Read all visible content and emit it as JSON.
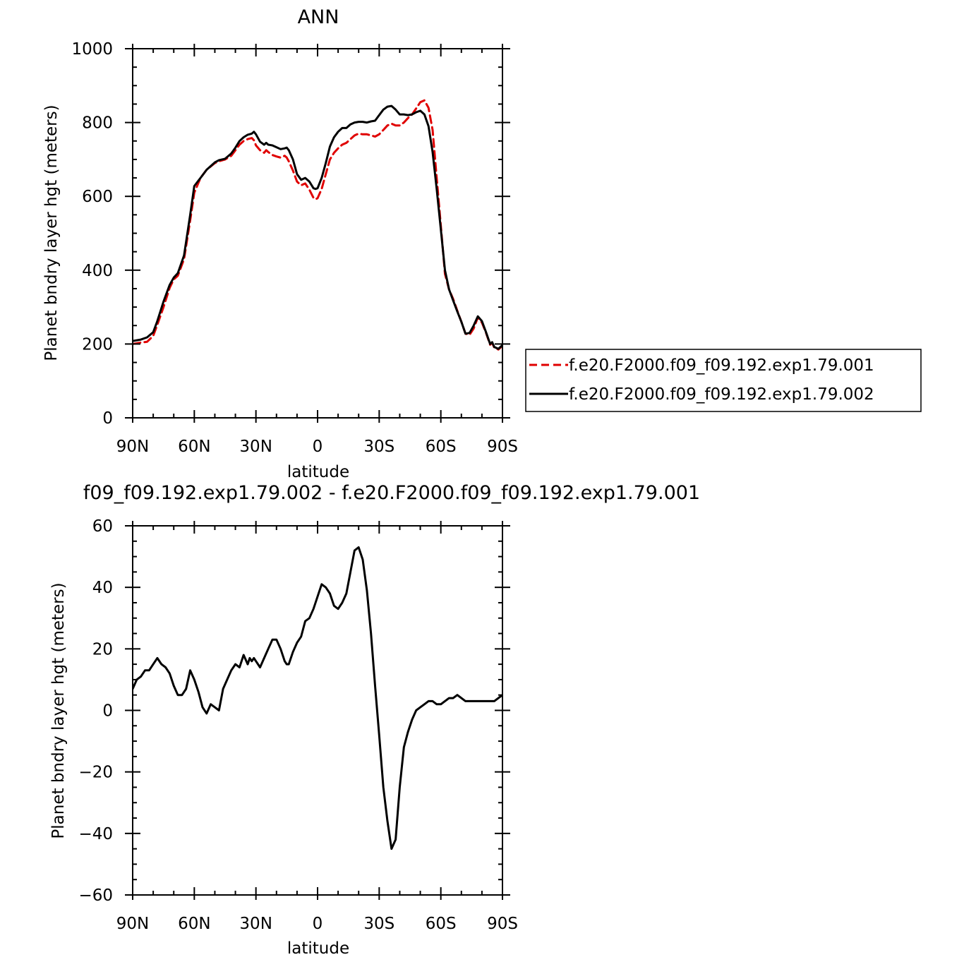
{
  "chart_data": [
    {
      "type": "line",
      "title": "ANN",
      "xlabel": "latitude",
      "ylabel": "Planet bndry layer hgt (meters)",
      "x_tick_labels": [
        "90N",
        "60N",
        "30N",
        "0",
        "30S",
        "60S",
        "90S"
      ],
      "xlim": [
        90,
        -90
      ],
      "ylim": [
        0,
        1000
      ],
      "y_ticks": [
        0,
        200,
        400,
        600,
        800,
        1000
      ],
      "legend_position": "right",
      "series": [
        {
          "name": "f.e20.F2000.f09_f09.192.exp1.79.001",
          "color": "#e00000",
          "dash": "dashed",
          "x": [
            90,
            86,
            83,
            80,
            78,
            75,
            72,
            70,
            68,
            65,
            62,
            60,
            57,
            54,
            50,
            48,
            45,
            42,
            40,
            38,
            36,
            34,
            32,
            31,
            30,
            28,
            26,
            25,
            24,
            22,
            20,
            18,
            16,
            15,
            14,
            12,
            10,
            8,
            6,
            4,
            2,
            1,
            0,
            -2,
            -4,
            -6,
            -8,
            -10,
            -12,
            -14,
            -16,
            -18,
            -20,
            -22,
            -24,
            -26,
            -28,
            -30,
            -32,
            -34,
            -36,
            -38,
            -40,
            -42,
            -44,
            -46,
            -48,
            -50,
            -52,
            -54,
            -56,
            -58,
            -60,
            -62,
            -64,
            -66,
            -68,
            -70,
            -72,
            -74,
            -76,
            -78,
            -80,
            -82,
            -84,
            -85,
            -86,
            -88,
            -90
          ],
          "y": [
            200,
            204,
            206,
            222,
            252,
            300,
            352,
            375,
            385,
            430,
            535,
            610,
            650,
            672,
            690,
            695,
            700,
            710,
            725,
            740,
            750,
            755,
            758,
            752,
            738,
            725,
            718,
            725,
            720,
            712,
            708,
            705,
            710,
            705,
            695,
            670,
            640,
            630,
            635,
            618,
            596,
            592,
            595,
            620,
            660,
            700,
            718,
            730,
            740,
            745,
            755,
            765,
            770,
            768,
            768,
            765,
            762,
            768,
            780,
            792,
            797,
            792,
            792,
            800,
            812,
            822,
            838,
            855,
            860,
            840,
            780,
            650,
            520,
            390,
            348,
            322,
            290,
            260,
            228,
            225,
            242,
            272,
            258,
            230,
            198,
            203,
            190,
            185,
            195
          ]
        },
        {
          "name": "f.e20.F2000.f09_f09.192.exp1.79.002",
          "color": "#000000",
          "dash": "solid",
          "x": [
            90,
            86,
            83,
            80,
            78,
            75,
            72,
            70,
            68,
            65,
            62,
            60,
            57,
            54,
            50,
            48,
            45,
            42,
            40,
            38,
            36,
            34,
            32,
            31,
            30,
            28,
            26,
            25,
            24,
            22,
            20,
            18,
            16,
            15,
            14,
            12,
            10,
            8,
            6,
            4,
            2,
            1,
            0,
            -2,
            -4,
            -6,
            -8,
            -10,
            -12,
            -14,
            -16,
            -18,
            -20,
            -22,
            -24,
            -26,
            -28,
            -30,
            -32,
            -34,
            -36,
            -38,
            -40,
            -42,
            -44,
            -46,
            -48,
            -50,
            -52,
            -54,
            -56,
            -58,
            -60,
            -62,
            -64,
            -66,
            -68,
            -70,
            -72,
            -74,
            -76,
            -78,
            -80,
            -82,
            -84,
            -85,
            -86,
            -88,
            -90
          ],
          "y": [
            208,
            212,
            218,
            232,
            262,
            315,
            360,
            380,
            392,
            440,
            550,
            628,
            650,
            672,
            692,
            698,
            702,
            716,
            732,
            750,
            760,
            767,
            770,
            775,
            768,
            748,
            740,
            745,
            740,
            738,
            733,
            728,
            730,
            732,
            725,
            700,
            660,
            645,
            650,
            640,
            622,
            620,
            622,
            650,
            690,
            735,
            760,
            775,
            785,
            785,
            795,
            800,
            802,
            802,
            800,
            803,
            805,
            820,
            835,
            843,
            845,
            835,
            822,
            822,
            820,
            822,
            828,
            832,
            822,
            790,
            720,
            620,
            510,
            400,
            348,
            318,
            288,
            260,
            228,
            230,
            250,
            275,
            262,
            232,
            200,
            205,
            192,
            187,
            197
          ]
        }
      ]
    },
    {
      "type": "line",
      "title": "f09_f09.192.exp1.79.002 - f.e20.F2000.f09_f09.192.exp1.79.001",
      "xlabel": "latitude",
      "ylabel": "Planet bndry layer hgt (meters)",
      "x_tick_labels": [
        "90N",
        "60N",
        "30N",
        "0",
        "30S",
        "60S",
        "90S"
      ],
      "xlim": [
        90,
        -90
      ],
      "ylim": [
        -60,
        60
      ],
      "y_ticks": [
        -60,
        -40,
        -20,
        0,
        20,
        40,
        60
      ],
      "series": [
        {
          "color": "#000000",
          "dash": "solid",
          "x": [
            90,
            88,
            86,
            84,
            82,
            80,
            78,
            76,
            74,
            72,
            70,
            68,
            66,
            64,
            62,
            60,
            58,
            56,
            54,
            52,
            50,
            48,
            46,
            44,
            42,
            40,
            38,
            36,
            34,
            33,
            32,
            31,
            30,
            29,
            28,
            26,
            24,
            22,
            20,
            18,
            16,
            15,
            14,
            12,
            10,
            8,
            6,
            4,
            2,
            0,
            -2,
            -4,
            -6,
            -8,
            -10,
            -12,
            -14,
            -16,
            -18,
            -20,
            -22,
            -24,
            -26,
            -28,
            -30,
            -32,
            -34,
            -36,
            -38,
            -40,
            -42,
            -44,
            -46,
            -48,
            -50,
            -52,
            -54,
            -56,
            -58,
            -60,
            -62,
            -64,
            -66,
            -68,
            -70,
            -72,
            -74,
            -76,
            -78,
            -80,
            -82,
            -84,
            -86,
            -88,
            -90
          ],
          "y": [
            7,
            10,
            11,
            13,
            13,
            15,
            17,
            15,
            14,
            12,
            8,
            5,
            5,
            7,
            13,
            10,
            6,
            1,
            -1,
            2,
            1,
            0,
            7,
            10,
            13,
            15,
            14,
            18,
            15,
            17,
            16,
            17,
            16,
            15,
            14,
            17,
            20,
            23,
            23,
            20,
            16,
            15,
            15,
            19,
            22,
            24,
            29,
            30,
            33,
            37,
            41,
            40,
            38,
            34,
            33,
            35,
            38,
            45,
            52,
            53,
            49,
            39,
            25,
            8,
            -8,
            -25,
            -36,
            -45,
            -42,
            -25,
            -12,
            -7,
            -3,
            0,
            1,
            2,
            3,
            3,
            2,
            2,
            3,
            4,
            4,
            5,
            4,
            3,
            3,
            3,
            3,
            3,
            3,
            3,
            3,
            4,
            5
          ]
        }
      ]
    }
  ]
}
